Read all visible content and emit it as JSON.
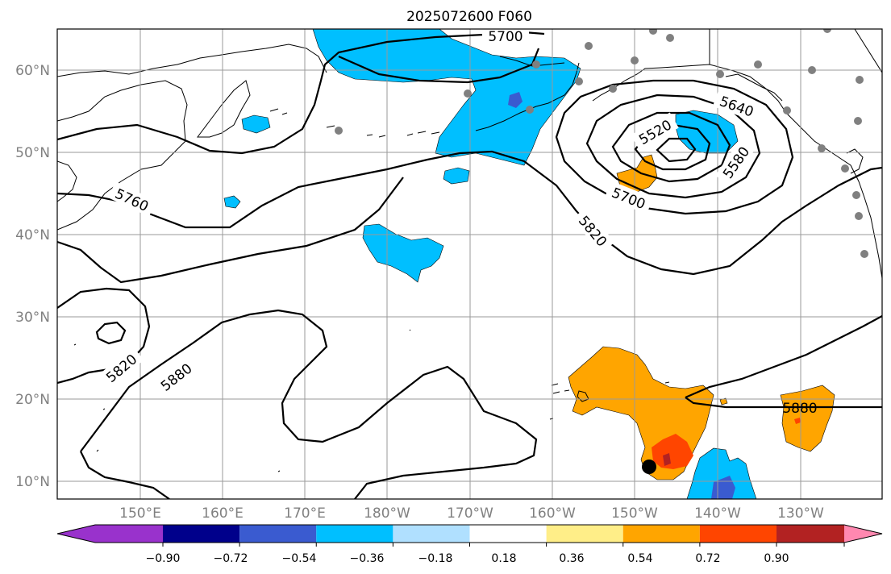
{
  "title": "2025072600 F060",
  "map": {
    "lat_labels": [
      "60°N",
      "50°N",
      "40°N",
      "30°N",
      "20°N",
      "10°N"
    ],
    "lon_labels": [
      "150°E",
      "160°E",
      "170°E",
      "180°W",
      "170°W",
      "160°W",
      "150°W",
      "140°W",
      "130°W"
    ],
    "contour_labels": [
      "5700",
      "5640",
      "5520",
      "5580",
      "5700",
      "5760",
      "5820",
      "5820",
      "5880",
      "5880"
    ],
    "colors": {
      "ocean": "#ffffff",
      "grid": "#9a9a9a",
      "axis_text": "#808080",
      "contour": "#000000",
      "station_marker": "#808080",
      "storm_marker": "#000000"
    }
  },
  "colorbar": {
    "ticks": [
      "−0.90",
      "−0.72",
      "−0.54",
      "−0.36",
      "−0.18",
      "0.18",
      "0.36",
      "0.54",
      "0.72",
      "0.90"
    ],
    "colors": [
      "#9932cc",
      "#00008b",
      "#3a5bd0",
      "#00bfff",
      "#b0e0ff",
      "#ffffff",
      "#ffee88",
      "#ffa500",
      "#ff4500",
      "#b22222",
      "#ff88b0"
    ]
  }
}
